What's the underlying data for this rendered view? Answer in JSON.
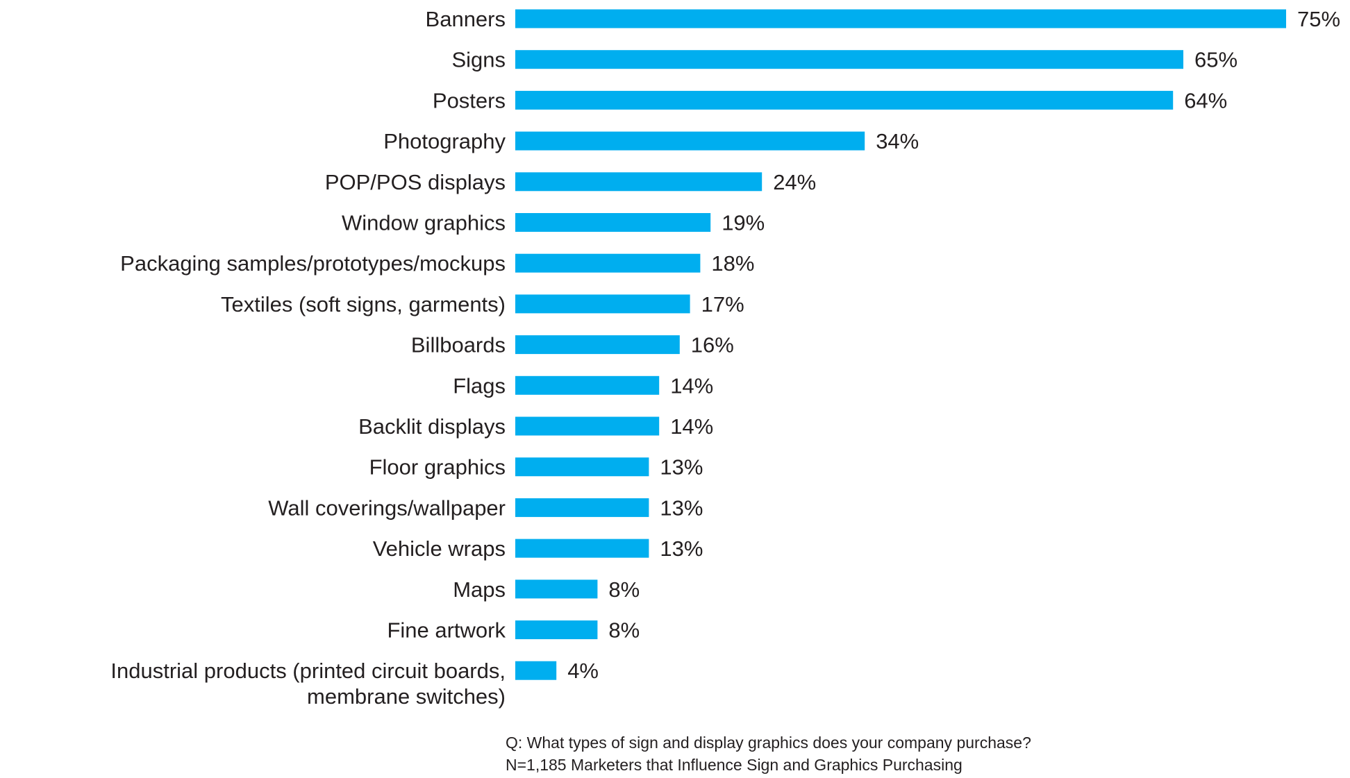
{
  "chart_data": {
    "type": "bar",
    "orientation": "horizontal",
    "categories": [
      [
        "Banners"
      ],
      [
        "Signs"
      ],
      [
        "Posters"
      ],
      [
        "Photography"
      ],
      [
        "POP/POS displays"
      ],
      [
        "Window graphics"
      ],
      [
        "Packaging samples/prototypes/mockups"
      ],
      [
        "Textiles (soft signs, garments)"
      ],
      [
        "Billboards"
      ],
      [
        "Flags"
      ],
      [
        "Backlit displays"
      ],
      [
        "Floor graphics"
      ],
      [
        "Wall coverings/wallpaper"
      ],
      [
        "Vehicle wraps"
      ],
      [
        "Maps"
      ],
      [
        "Fine artwork"
      ],
      [
        "Industrial products (printed circuit boards,",
        "membrane switches)"
      ]
    ],
    "values": [
      75,
      65,
      64,
      34,
      24,
      19,
      18,
      17,
      16,
      14,
      14,
      13,
      13,
      13,
      8,
      8,
      4
    ],
    "value_labels": [
      "75%",
      "65%",
      "64%",
      "34%",
      "24%",
      "19%",
      "18%",
      "17%",
      "16%",
      "14%",
      "14%",
      "13%",
      "13%",
      "13%",
      "8%",
      "8%",
      "4%"
    ],
    "bar_color": "#00aeef",
    "xlim": [
      0,
      75
    ],
    "grid": false,
    "legend": "none"
  },
  "footnotes": {
    "question": "Q: What types of sign and display graphics does your company purchase?",
    "sample": "N=1,185 Marketers that Influence Sign and Graphics Purchasing"
  }
}
